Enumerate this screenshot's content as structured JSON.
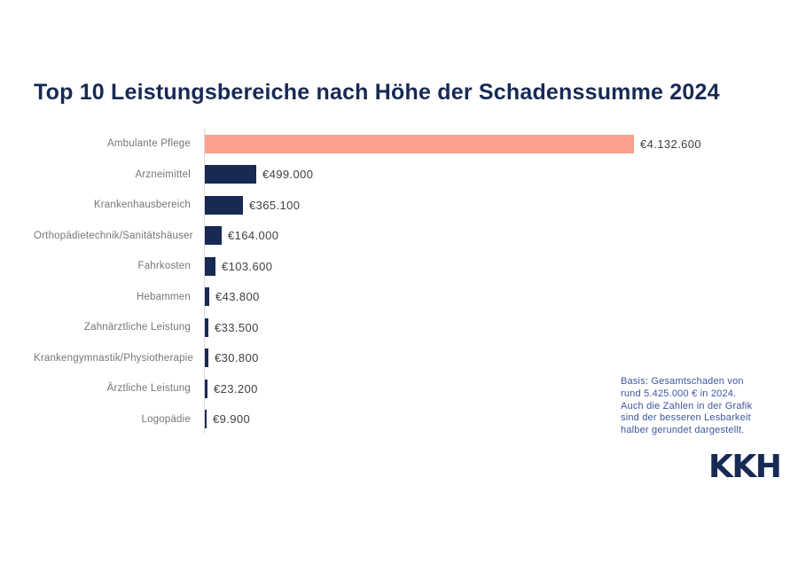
{
  "header": {
    "title": "Top 10 Leistungsbereiche nach Höhe der Schadenssumme 2024"
  },
  "chart_data": {
    "type": "bar",
    "orientation": "horizontal",
    "title": "Top 10 Leistungsbereiche nach Höhe der Schadenssumme 2024",
    "categories": [
      "Ambulante Pflege",
      "Arzneimittel",
      "Krankenhausbereich",
      "Orthopädietechnik/Sanitätshäuser",
      "Fahrkosten",
      "Hebammen",
      "Zahnärztliche Leistung",
      "Krankengymnastik/Physiotherapie",
      "Ärztliche Leistung",
      "Logopädie"
    ],
    "values": [
      4132600,
      499000,
      365100,
      164000,
      103600,
      43800,
      33500,
      30800,
      23200,
      9900
    ],
    "value_labels": [
      "€4.132.600",
      "€499.000",
      "€365.100",
      "€164.000",
      "€103.600",
      "€43.800",
      "€33.500",
      "€30.800",
      "€23.200",
      "€9.900"
    ],
    "xlim": [
      0,
      4132600
    ],
    "grid": false,
    "legend": "none",
    "value_label_position": "end-of-bar",
    "highlight_index": 0,
    "highlight_color": "#FCA08E",
    "bar_color": "#172A54"
  },
  "note": {
    "lines": [
      "Basis: Gesamtschaden von",
      "rund 5.425.000 € in 2024.",
      "Auch die Zahlen in der Grafik",
      "sind der besseren Lesbarkeit",
      "halber gerundet dargestellt."
    ]
  },
  "branding": {
    "logo_text": "KKH"
  },
  "colors": {
    "background": "#FFFFFF",
    "title_text": "#172A54",
    "category_label_text": "#767676",
    "value_label_text": "#3F3F3F",
    "note_text": "#3B57A0",
    "axis_baseline": "#DCDCDC",
    "highlight_bar": "#FCA08E",
    "default_bar": "#172A54"
  }
}
